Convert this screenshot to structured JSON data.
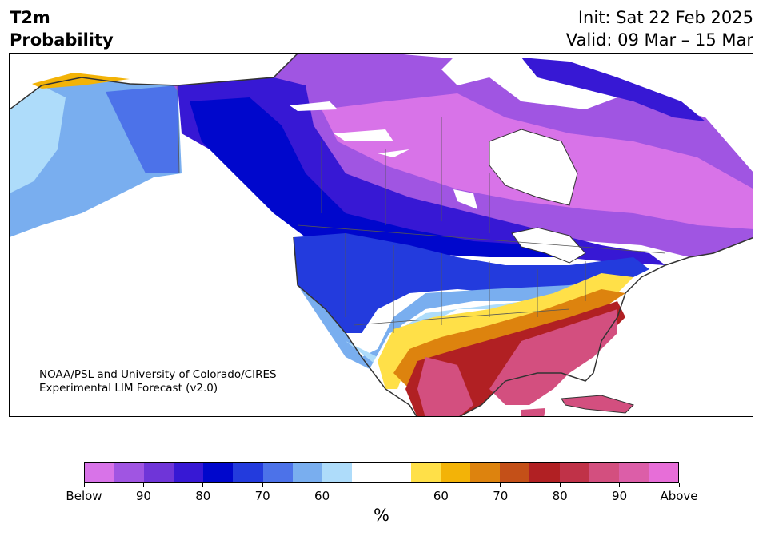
{
  "header": {
    "variable": "T2m",
    "product": "Probability",
    "init": "Init: Sat 22 Feb 2025",
    "valid": "Valid: 09 Mar – 15 Mar"
  },
  "credit": {
    "line1": "NOAA/PSL and University of Colorado/CIRES",
    "line2": "Experimental LIM Forecast (v2.0)"
  },
  "colorbar": {
    "colors": [
      "#d873e8",
      "#a055e2",
      "#6f35d8",
      "#3718d4",
      "#0007cc",
      "#233bdd",
      "#4c72e9",
      "#79aeef",
      "#aedcfa",
      "#ffffff",
      "#ffffff",
      "#ffe048",
      "#f3b307",
      "#dd830e",
      "#c45018",
      "#b12023",
      "#c03248",
      "#d34f7f",
      "#dc5ea8",
      "#e76ed8"
    ],
    "tick_labels": [
      "Below",
      "90",
      "80",
      "70",
      "60",
      "60",
      "70",
      "80",
      "90",
      "Above"
    ],
    "unit": "%"
  },
  "map": {
    "region": "North America",
    "colors": {
      "below_extreme": "#d873e8",
      "below_high": "#0007cc",
      "below_mid": "#4c72e9",
      "below_low": "#aedcfa",
      "above_low": "#ffe048",
      "above_mid": "#dd830e",
      "above_high": "#b12023",
      "above_extreme": "#d34f7f",
      "land_no_signal": "#ffffff",
      "coast": "#333333"
    }
  }
}
